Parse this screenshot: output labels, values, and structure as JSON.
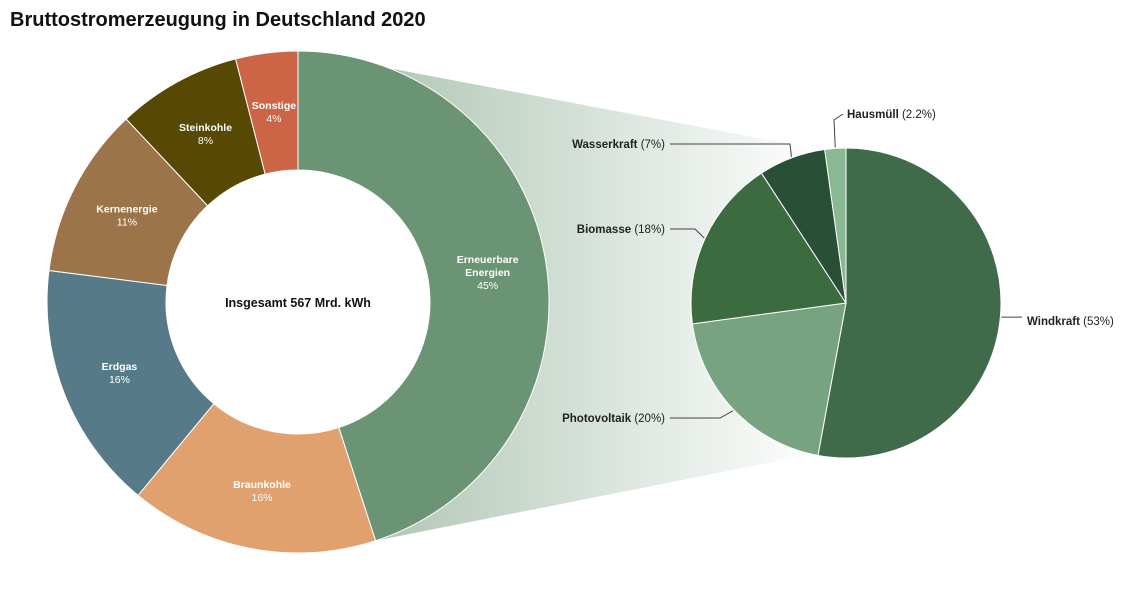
{
  "chart_data": [
    {
      "type": "donut",
      "title": "Bruttostromerzeugung in Deutschland 2020",
      "center_label": "Insgesamt 567 Mrd. kWh",
      "categories": [
        "Erneuerbare Energien",
        "Braunkohle",
        "Erdgas",
        "Kernenergie",
        "Steinkohle",
        "Sonstige"
      ],
      "label_lines": [
        [
          "Erneuerbare",
          "Energien"
        ],
        [
          "Braunkohle"
        ],
        [
          "Erdgas"
        ],
        [
          "Kernenergie"
        ],
        [
          "Steinkohle"
        ],
        [
          "Sonstige"
        ]
      ],
      "value_labels": [
        "45%",
        "16%",
        "16%",
        "11%",
        "8%",
        "4%"
      ],
      "values": [
        45,
        16,
        16,
        11,
        8,
        4
      ],
      "colors": [
        "#6b9474",
        "#e0a16e",
        "#577a89",
        "#9c744a",
        "#574803",
        "#cb6546"
      ]
    },
    {
      "type": "pie",
      "categories": [
        "Windkraft",
        "Photovoltaik",
        "Biomasse",
        "Wasserkraft",
        "Hausmüll"
      ],
      "value_labels": [
        "(53%)",
        "(20%)",
        "(18%)",
        "(7%)",
        "(2.2%)"
      ],
      "values": [
        53,
        20,
        18,
        7,
        2.2
      ],
      "colors": [
        "#3f6b4a",
        "#78a380",
        "#3c6b40",
        "#2a4f37",
        "#8ab893"
      ]
    }
  ]
}
